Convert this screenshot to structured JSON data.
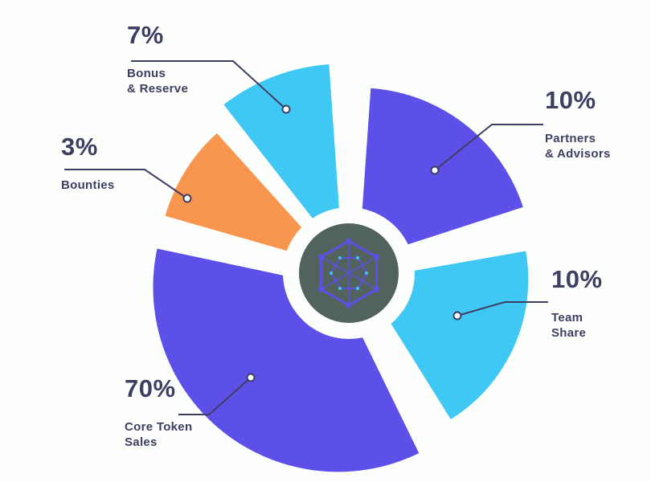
{
  "chart_data": {
    "type": "pie",
    "style": "exploded pie with center logo and callout labels",
    "unit": "%",
    "total": 100,
    "legend_position": "callout-labels",
    "slices": [
      {
        "label": "Bonus & Reserve",
        "value": 7,
        "percent_label": "7%",
        "name_display": "Bonus\n& Reserve",
        "color": "#40c8f4"
      },
      {
        "label": "Partners & Advisors",
        "value": 10,
        "percent_label": "10%",
        "name_display": "Partners\n& Advisors",
        "color": "#5c50e8"
      },
      {
        "label": "Team Share",
        "value": 10,
        "percent_label": "10%",
        "name_display": "Team\nShare",
        "color": "#40c8f4"
      },
      {
        "label": "Core Token Sales",
        "value": 70,
        "percent_label": "70%",
        "name_display": "Core Token\nSales",
        "color": "#5c50e8"
      },
      {
        "label": "Bounties",
        "value": 3,
        "percent_label": "3%",
        "name_display": "Bounties",
        "color": "#f8954f"
      }
    ],
    "colors": {
      "label_text": "#403d63",
      "leader_line": "#403d63",
      "center_circle": "#51635c",
      "logo": "#5c50e8",
      "logo_accent": "#40c8f4",
      "background": "#fdfffd"
    },
    "center_icon": "hexagon-network-icon"
  }
}
